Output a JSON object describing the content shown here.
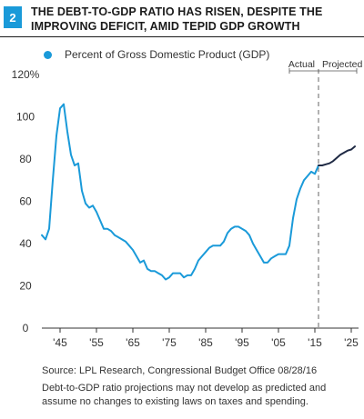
{
  "figure_number": "2",
  "title_lines": [
    "The Debt-to-GDP Ratio Has Risen, Despite the",
    "Improving Deficit, Amid Tepid GDP Growth"
  ],
  "colors": {
    "actual": "#1a9ad9",
    "projected": "#1f2a44",
    "badge": "#1a9ad9",
    "divider": "#666666"
  },
  "source": "Source: LPL Research, Congressional Budget Office   08/28/16",
  "note": "Debt-to-GDP ratio projections may not develop as predicted and assume no changes to existing laws on taxes and spending.",
  "chart_data": {
    "type": "line",
    "ylim": [
      0,
      120
    ],
    "xlim": [
      1940,
      2027
    ],
    "yticks": [
      0,
      20,
      40,
      60,
      80,
      100,
      120
    ],
    "ytick_labels": [
      "0",
      "20",
      "40",
      "60",
      "80",
      "100",
      "120%"
    ],
    "xticks": [
      1945,
      1955,
      1965,
      1975,
      1985,
      1995,
      2005,
      2015,
      2025
    ],
    "xtick_labels": [
      "'45",
      "'55",
      "'65",
      "'75",
      "'85",
      "'95",
      "'05",
      "'15",
      "'25"
    ],
    "grid": false,
    "legend_position": "top-left",
    "divider_year": 2016,
    "period_labels": {
      "actual": "Actual",
      "projected": "Projected"
    },
    "series": [
      {
        "name": "Percent of Gross Domestic Product (GDP)",
        "segment": "actual",
        "x": [
          1940,
          1941,
          1942,
          1943,
          1944,
          1945,
          1946,
          1947,
          1948,
          1949,
          1950,
          1951,
          1952,
          1953,
          1954,
          1955,
          1956,
          1957,
          1958,
          1959,
          1960,
          1961,
          1962,
          1963,
          1964,
          1965,
          1966,
          1967,
          1968,
          1969,
          1970,
          1971,
          1972,
          1973,
          1974,
          1975,
          1976,
          1977,
          1978,
          1979,
          1980,
          1981,
          1982,
          1983,
          1984,
          1985,
          1986,
          1987,
          1988,
          1989,
          1990,
          1991,
          1992,
          1993,
          1994,
          1995,
          1996,
          1997,
          1998,
          1999,
          2000,
          2001,
          2002,
          2003,
          2004,
          2005,
          2006,
          2007,
          2008,
          2009,
          2010,
          2011,
          2012,
          2013,
          2014,
          2015,
          2016
        ],
        "values": [
          44,
          42,
          47,
          70,
          91,
          104,
          106,
          93,
          82,
          77,
          78,
          65,
          59,
          57,
          58,
          55,
          51,
          47,
          47,
          46,
          44,
          43,
          42,
          41,
          39,
          37,
          34,
          31,
          32,
          28,
          27,
          27,
          26,
          25,
          23,
          24,
          26,
          26,
          26,
          24,
          25,
          25,
          28,
          32,
          34,
          36,
          38,
          39,
          39,
          39,
          41,
          45,
          47,
          48,
          48,
          47,
          46,
          44,
          40,
          37,
          34,
          31,
          31,
          33,
          34,
          35,
          35,
          35,
          39,
          52,
          61,
          66,
          70,
          72,
          74,
          73,
          77
        ]
      },
      {
        "name": "Percent of Gross Domestic Product (GDP)",
        "segment": "projected",
        "x": [
          2016,
          2017,
          2018,
          2019,
          2020,
          2021,
          2022,
          2023,
          2024,
          2025,
          2026
        ],
        "values": [
          77,
          77,
          77.5,
          78,
          79,
          80.5,
          82,
          83,
          84,
          84.5,
          86
        ]
      }
    ]
  }
}
